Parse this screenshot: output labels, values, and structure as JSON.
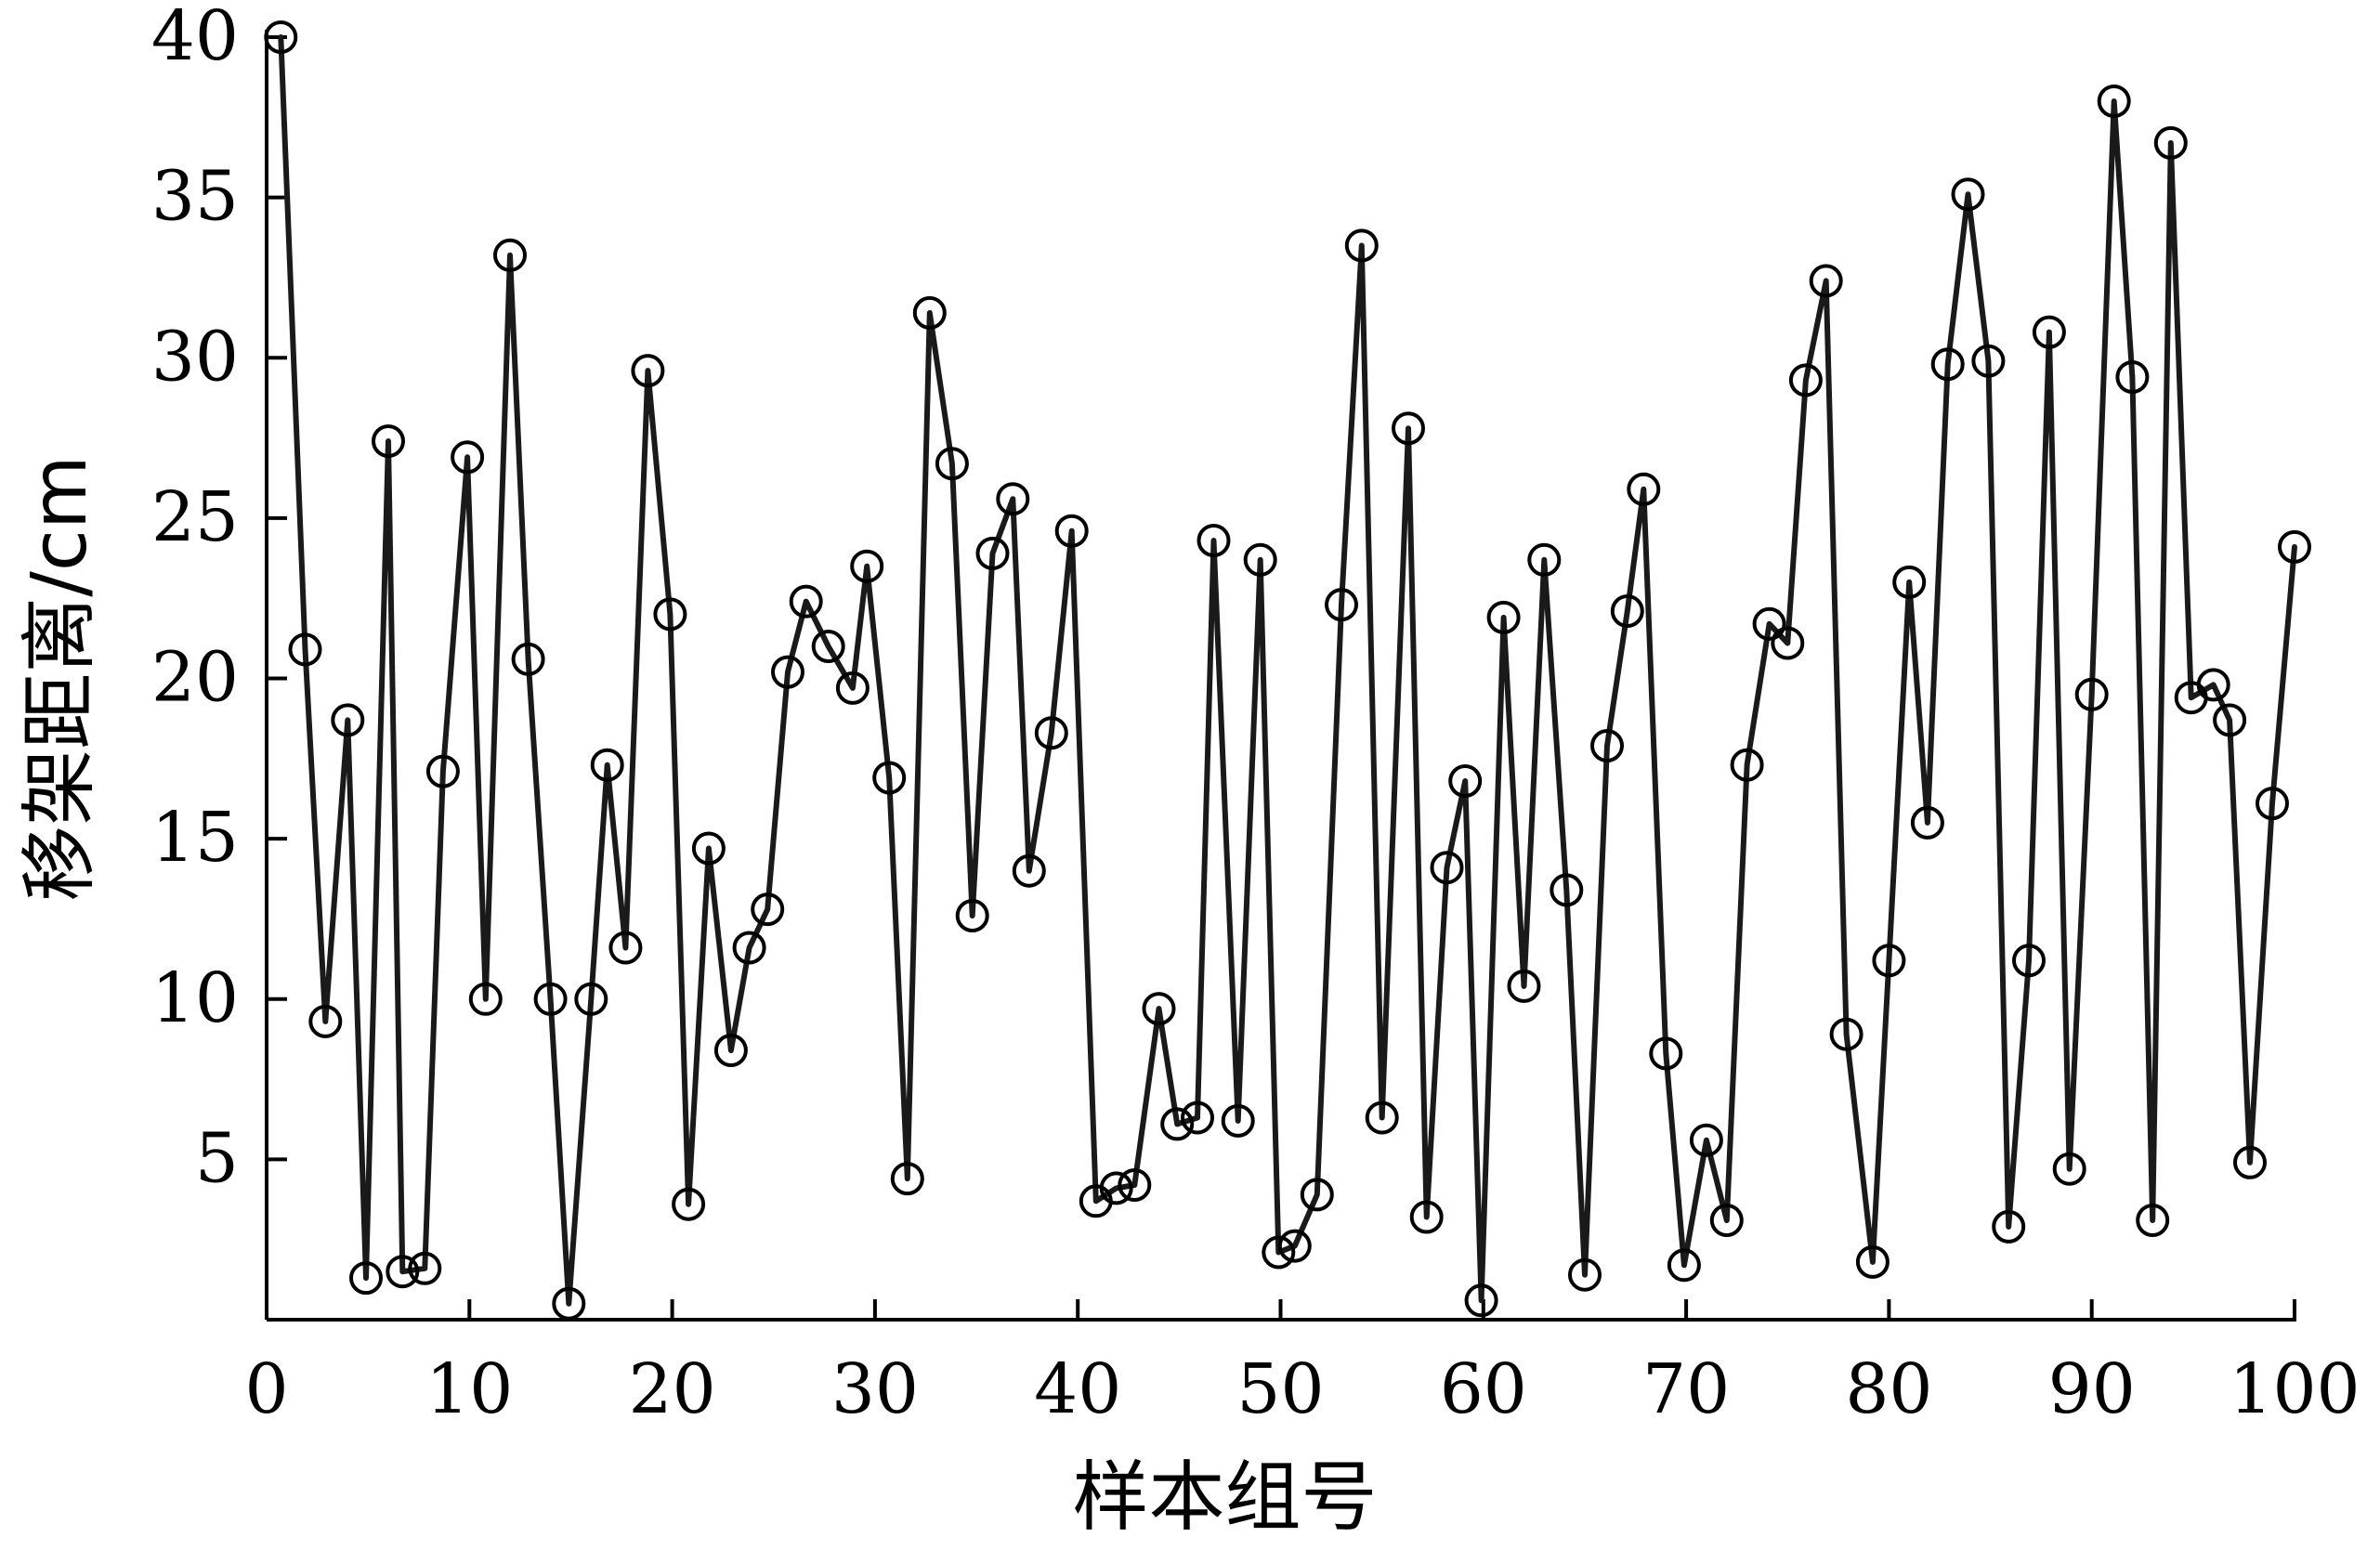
{
  "chart_data": {
    "type": "line",
    "xlabel": "样本组号",
    "ylabel": "移架距离/cm",
    "xlim": [
      0,
      100
    ],
    "ylim": [
      0,
      40
    ],
    "xticks": [
      "0",
      "10",
      "20",
      "30",
      "40",
      "50",
      "60",
      "70",
      "80",
      "90",
      "100"
    ],
    "yticks": [
      "5",
      "10",
      "15",
      "20",
      "25",
      "30",
      "35",
      "40"
    ],
    "grid": false,
    "line_color": "#1a1a1a",
    "series": [
      {
        "marker": "open-circle",
        "points": [
          [
            0.7,
            40.0
          ],
          [
            1.9,
            20.9
          ],
          [
            2.9,
            9.3
          ],
          [
            4.0,
            18.7
          ],
          [
            4.9,
            1.3
          ],
          [
            6.0,
            27.4
          ],
          [
            6.7,
            1.5
          ],
          [
            7.8,
            1.6
          ],
          [
            8.7,
            17.1
          ],
          [
            9.9,
            26.9
          ],
          [
            10.8,
            10.0
          ],
          [
            12.0,
            33.2
          ],
          [
            12.9,
            20.6
          ],
          [
            14.0,
            10.0
          ],
          [
            14.9,
            0.5
          ],
          [
            16.0,
            10.0
          ],
          [
            16.8,
            17.3
          ],
          [
            17.7,
            11.6
          ],
          [
            18.8,
            29.6
          ],
          [
            19.9,
            22.0
          ],
          [
            20.8,
            3.6
          ],
          [
            21.8,
            14.7
          ],
          [
            22.9,
            8.4
          ],
          [
            23.8,
            11.6
          ],
          [
            24.7,
            12.8
          ],
          [
            25.7,
            20.2
          ],
          [
            26.6,
            22.4
          ],
          [
            27.7,
            21.0
          ],
          [
            28.9,
            19.7
          ],
          [
            29.6,
            23.5
          ],
          [
            30.7,
            16.9
          ],
          [
            31.6,
            4.4
          ],
          [
            32.7,
            31.4
          ],
          [
            33.8,
            26.7
          ],
          [
            34.8,
            12.6
          ],
          [
            35.8,
            23.9
          ],
          [
            36.8,
            25.6
          ],
          [
            37.6,
            14.0
          ],
          [
            38.7,
            18.3
          ],
          [
            39.7,
            24.6
          ],
          [
            40.9,
            3.7
          ],
          [
            41.9,
            4.1
          ],
          [
            42.8,
            4.2
          ],
          [
            44.0,
            9.7
          ],
          [
            44.9,
            6.1
          ],
          [
            45.9,
            6.3
          ],
          [
            46.7,
            24.3
          ],
          [
            47.9,
            6.2
          ],
          [
            49.0,
            23.7
          ],
          [
            49.9,
            2.1
          ],
          [
            50.7,
            2.3
          ],
          [
            51.8,
            3.9
          ],
          [
            53.0,
            22.3
          ],
          [
            54.0,
            33.5
          ],
          [
            55.0,
            6.3
          ],
          [
            56.3,
            27.8
          ],
          [
            57.2,
            3.2
          ],
          [
            58.2,
            14.1
          ],
          [
            59.1,
            16.8
          ],
          [
            59.9,
            0.6
          ],
          [
            61.0,
            21.9
          ],
          [
            62.0,
            10.4
          ],
          [
            63.0,
            23.7
          ],
          [
            64.1,
            13.4
          ],
          [
            65.0,
            1.4
          ],
          [
            66.1,
            17.9
          ],
          [
            67.1,
            22.1
          ],
          [
            67.9,
            25.9
          ],
          [
            69.0,
            8.3
          ],
          [
            69.9,
            1.7
          ],
          [
            71.0,
            5.6
          ],
          [
            72.0,
            3.1
          ],
          [
            73.0,
            17.3
          ],
          [
            74.1,
            21.7
          ],
          [
            75.0,
            21.1
          ],
          [
            75.9,
            29.3
          ],
          [
            76.9,
            32.4
          ],
          [
            77.9,
            8.9
          ],
          [
            79.2,
            1.8
          ],
          [
            80.0,
            11.2
          ],
          [
            81.0,
            23.0
          ],
          [
            81.9,
            15.5
          ],
          [
            82.9,
            29.8
          ],
          [
            83.9,
            35.1
          ],
          [
            84.9,
            29.9
          ],
          [
            85.9,
            2.9
          ],
          [
            86.9,
            11.2
          ],
          [
            87.9,
            30.8
          ],
          [
            88.9,
            4.7
          ],
          [
            90.0,
            19.5
          ],
          [
            91.1,
            38.0
          ],
          [
            92.0,
            29.4
          ],
          [
            93.0,
            3.1
          ],
          [
            93.9,
            36.7
          ],
          [
            94.9,
            19.4
          ],
          [
            96.0,
            19.8
          ],
          [
            96.8,
            18.7
          ],
          [
            97.8,
            4.9
          ],
          [
            98.9,
            16.1
          ],
          [
            100.0,
            24.1
          ]
        ]
      }
    ]
  }
}
